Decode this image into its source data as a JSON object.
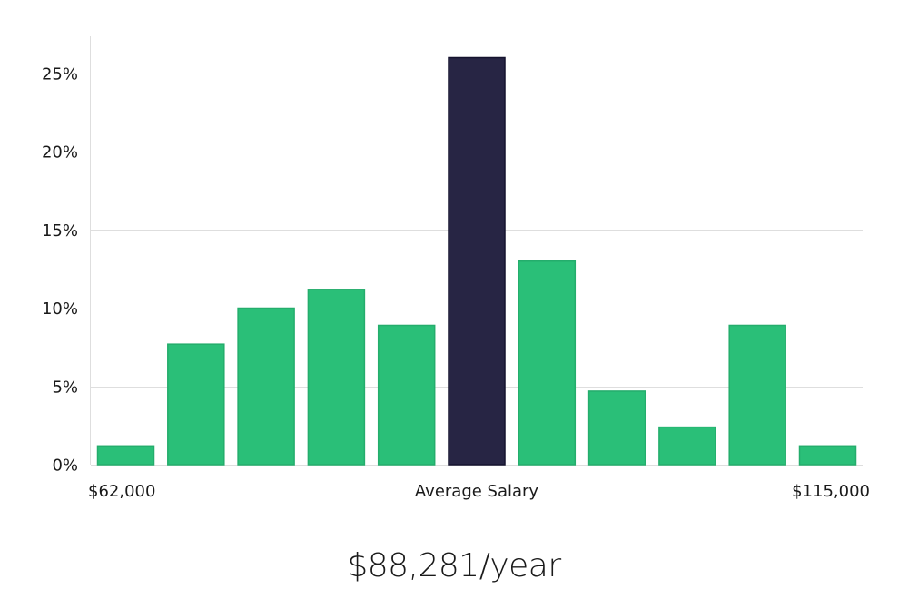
{
  "chart_data": {
    "type": "bar",
    "title": "",
    "xlabel": "Average Salary",
    "ylabel": "",
    "x_range_labels": {
      "min": "$62,000",
      "max": "$115,000"
    },
    "y_ticks": [
      "0%",
      "5%",
      "10%",
      "15%",
      "20%",
      "25%"
    ],
    "y_tick_values": [
      0,
      5,
      10,
      15,
      20,
      25
    ],
    "ylim": [
      0,
      27.3
    ],
    "unit": "%",
    "grid": true,
    "values": [
      1.2,
      7.7,
      10.0,
      11.2,
      8.9,
      26.0,
      13.0,
      4.7,
      2.4,
      8.9,
      1.2
    ],
    "highlight_index": 5,
    "colors": {
      "bar": "#2abf78",
      "bar_border": "#24ad6c",
      "highlight": "#272544",
      "highlight_border": "#15132e"
    }
  },
  "summary": {
    "average_salary": "$88,281/year"
  }
}
